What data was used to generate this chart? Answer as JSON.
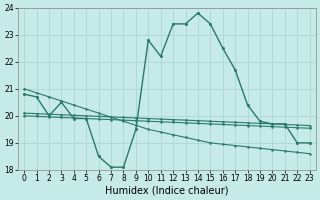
{
  "xlabel": "Humidex (Indice chaleur)",
  "bg_color": "#c5eae7",
  "grid_color": "#b0d8d5",
  "line_color": "#2a7a6a",
  "xlim": [
    -0.5,
    23.5
  ],
  "ylim": [
    18,
    24
  ],
  "yticks": [
    18,
    19,
    20,
    21,
    22,
    23,
    24
  ],
  "xticks": [
    0,
    1,
    2,
    3,
    4,
    5,
    6,
    7,
    8,
    9,
    10,
    11,
    12,
    13,
    14,
    15,
    16,
    17,
    18,
    19,
    20,
    21,
    22,
    23
  ],
  "curve1": [
    20.8,
    20.7,
    20.0,
    20.5,
    19.9,
    19.9,
    18.5,
    18.1,
    18.1,
    19.5,
    22.8,
    22.2,
    23.4,
    23.4,
    23.8,
    23.4,
    22.5,
    21.7,
    20.4,
    19.8,
    19.7,
    19.7,
    19.0,
    19.0
  ],
  "curve2": [
    21.0,
    20.85,
    20.7,
    20.55,
    20.4,
    20.25,
    20.1,
    19.95,
    19.8,
    19.65,
    19.5,
    19.4,
    19.3,
    19.2,
    19.1,
    19.0,
    18.95,
    18.9,
    18.85,
    18.8,
    18.75,
    18.7,
    18.65,
    18.6
  ],
  "curve3": [
    20.0,
    19.98,
    19.96,
    19.94,
    19.92,
    19.9,
    19.88,
    19.86,
    19.84,
    19.82,
    19.8,
    19.78,
    19.76,
    19.74,
    19.72,
    19.7,
    19.68,
    19.66,
    19.64,
    19.62,
    19.6,
    19.58,
    19.56,
    19.54
  ],
  "curve4": [
    20.1,
    20.08,
    20.06,
    20.04,
    20.02,
    20.0,
    19.98,
    19.96,
    19.94,
    19.92,
    19.9,
    19.88,
    19.86,
    19.84,
    19.82,
    19.8,
    19.78,
    19.76,
    19.74,
    19.72,
    19.7,
    19.68,
    19.66,
    19.64
  ],
  "xlabel_fontsize": 7,
  "tick_fontsize": 5.5
}
